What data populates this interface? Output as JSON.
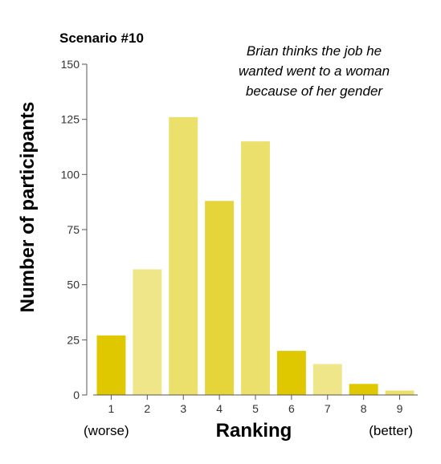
{
  "chart_data": {
    "type": "bar",
    "title": "Scenario #10",
    "annotation": [
      "Brian thinks the job he",
      "wanted went to a woman",
      "because of her gender"
    ],
    "xlabel": "Ranking",
    "ylabel": "Number of participants",
    "x_end_labels": {
      "left": "(worse)",
      "right": "(better)"
    },
    "categories": [
      "1",
      "2",
      "3",
      "4",
      "5",
      "6",
      "7",
      "8",
      "9"
    ],
    "values": [
      27,
      57,
      126,
      88,
      115,
      20,
      14,
      5,
      2
    ],
    "bar_colors": [
      "#e0c800",
      "#efe68a",
      "#ece06c",
      "#e5d43a",
      "#ece06c",
      "#e0c800",
      "#efe68a",
      "#e0c800",
      "#ece06c"
    ],
    "ylim": [
      0,
      150
    ],
    "yticks": [
      0,
      25,
      50,
      75,
      100,
      125,
      150
    ],
    "grid": false
  }
}
